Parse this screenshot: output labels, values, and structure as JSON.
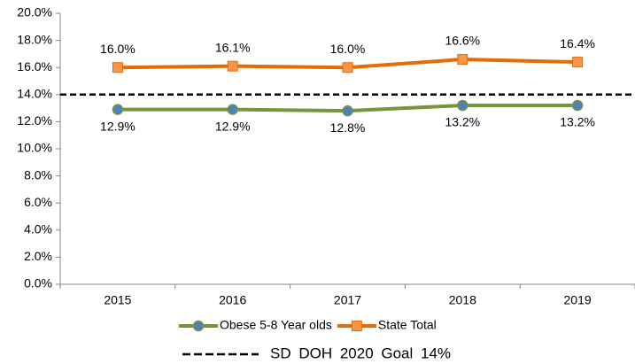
{
  "chart_data": {
    "type": "line",
    "categories": [
      "2015",
      "2016",
      "2017",
      "2018",
      "2019"
    ],
    "series": [
      {
        "name": "Obese 5-8 Year olds",
        "color": "#77933c",
        "marker": "circle",
        "marker_color": "#4f81bd",
        "values": [
          12.9,
          12.9,
          12.8,
          13.2,
          13.2
        ],
        "value_labels": [
          "12.9%",
          "12.9%",
          "12.8%",
          "13.2%",
          "13.2%"
        ],
        "label_position": "below"
      },
      {
        "name": "State Total",
        "color": "#e46c0a",
        "marker": "square",
        "marker_color": "#f79646",
        "values": [
          16.0,
          16.1,
          16.0,
          16.6,
          16.4
        ],
        "value_labels": [
          "16.0%",
          "16.1%",
          "16.0%",
          "16.6%",
          "16.4%"
        ],
        "label_position": "above"
      }
    ],
    "reference_line": {
      "value": 14,
      "label": "SD DOH 2020 Goal 14%",
      "color": "#000000"
    },
    "ylim": [
      0,
      20
    ],
    "yticks": [
      {
        "value": 0,
        "label": "0.0%"
      },
      {
        "value": 2,
        "label": "2.0%"
      },
      {
        "value": 4,
        "label": "4.0%"
      },
      {
        "value": 6,
        "label": "6.0%"
      },
      {
        "value": 8,
        "label": "8.0%"
      },
      {
        "value": 10,
        "label": "10.0%"
      },
      {
        "value": 12,
        "label": "12.0%"
      },
      {
        "value": 14,
        "label": "14.0%"
      },
      {
        "value": 16,
        "label": "16.0%"
      },
      {
        "value": 18,
        "label": "18.0%"
      },
      {
        "value": 20,
        "label": "20.0%"
      }
    ],
    "grid": false
  }
}
